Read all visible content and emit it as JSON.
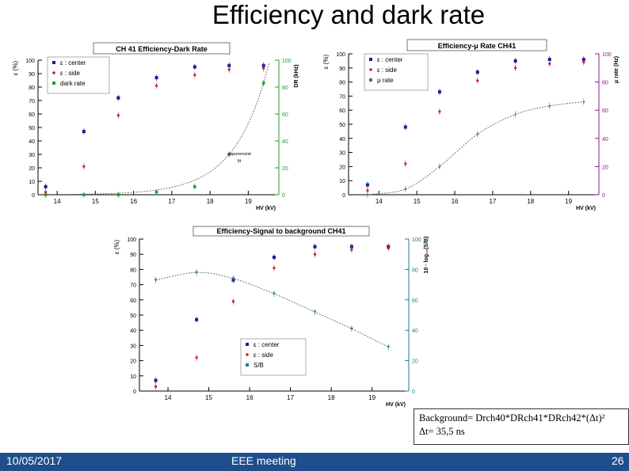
{
  "slide": {
    "title": "Efficiency and dark rate",
    "footer": {
      "date": "10/05/2017",
      "event": "EEE meeting",
      "page": "26"
    },
    "background_box": {
      "line1": "Background= Drch40*DRch41*DRch42*(Δt)²",
      "line2": "Δt= 35,5 ns"
    }
  },
  "colors": {
    "center": "#1a1aa0",
    "side": "#d01c1c",
    "green": "#1f9e32",
    "purple": "#8a1a8a",
    "teal": "#1a7f8f",
    "fit": "#666666",
    "footer": "#1f4e8c"
  },
  "chart_data": [
    {
      "type": "scatter",
      "title": "CH 41  Efficiency-Dark Rate",
      "xlabel": "HV (kV)",
      "ylabel": "ε (%)",
      "y2label": "DR (kHz)",
      "xlim": [
        13.5,
        19.8
      ],
      "ylim": [
        0,
        100
      ],
      "y2lim": [
        0,
        100
      ],
      "xticks": [
        "14",
        "15",
        "16",
        "17",
        "18",
        "19"
      ],
      "yticks": [
        "0",
        "10",
        "20",
        "30",
        "40",
        "50",
        "60",
        "70",
        "80",
        "90",
        "100"
      ],
      "y2ticks": [
        "0",
        "20",
        "40",
        "60",
        "80",
        "100"
      ],
      "legend": [
        "ε : center",
        "ε : side",
        "dark rate"
      ],
      "annotation": [
        "esponenzial",
        "fit"
      ],
      "series": [
        {
          "name": "ε : center",
          "x": [
            13.7,
            14.7,
            15.6,
            16.6,
            17.6,
            18.5,
            19.4
          ],
          "y": [
            6,
            47,
            72,
            87,
            95,
            96,
            96
          ]
        },
        {
          "name": "ε : side",
          "x": [
            13.7,
            14.7,
            15.6,
            16.6,
            17.6,
            18.5,
            19.4
          ],
          "y": [
            2,
            21,
            59,
            81,
            89,
            93,
            94
          ]
        },
        {
          "name": "dark rate",
          "axis": "right",
          "x": [
            13.7,
            14.7,
            15.6,
            16.6,
            17.6,
            18.5,
            19.4
          ],
          "y": [
            0,
            0,
            0,
            2,
            6,
            30,
            83
          ]
        }
      ]
    },
    {
      "type": "scatter",
      "title": "Efficiency-μ Rate CH41",
      "xlabel": "HV (kV)",
      "ylabel": "ε (%)",
      "y2label": "μ rate (Hz)",
      "xlim": [
        13.2,
        19.8
      ],
      "ylim": [
        0,
        100
      ],
      "y2lim": [
        0,
        100
      ],
      "xticks": [
        "14",
        "15",
        "16",
        "17",
        "18",
        "19"
      ],
      "yticks": [
        "0",
        "10",
        "20",
        "30",
        "40",
        "50",
        "60",
        "70",
        "80",
        "90",
        "100"
      ],
      "y2ticks": [
        "0",
        "20",
        "40",
        "60",
        "80",
        "100"
      ],
      "legend": [
        "ε : center",
        "ε : side",
        "μ rate"
      ],
      "series": [
        {
          "name": "ε : center",
          "x": [
            13.7,
            14.7,
            15.6,
            16.6,
            17.6,
            18.5,
            19.4
          ],
          "y": [
            7,
            48,
            73,
            87,
            95,
            96,
            96
          ]
        },
        {
          "name": "ε : side",
          "x": [
            13.7,
            14.7,
            15.6,
            16.6,
            17.6,
            18.5,
            19.4
          ],
          "y": [
            3,
            22,
            59,
            81,
            90,
            93,
            94
          ]
        },
        {
          "name": "μ rate",
          "axis": "right",
          "x": [
            13.7,
            14.7,
            15.6,
            16.6,
            17.6,
            18.5,
            19.4
          ],
          "y": [
            0,
            4,
            20,
            43,
            57,
            63,
            66
          ]
        }
      ]
    },
    {
      "type": "scatter",
      "title": "Efficiency-Signal to background CH41",
      "xlabel": "HV (kV)",
      "ylabel": "ε (%)",
      "y2label": "10 · log₁₀(S/B)",
      "xlim": [
        13.3,
        19.9
      ],
      "ylim": [
        0,
        100
      ],
      "y2lim": [
        0,
        100
      ],
      "xticks": [
        "14",
        "15",
        "16",
        "17",
        "18",
        "19"
      ],
      "yticks": [
        "0",
        "10",
        "20",
        "30",
        "40",
        "50",
        "60",
        "70",
        "80",
        "90",
        "100"
      ],
      "y2ticks": [
        "0",
        "20",
        "40",
        "60",
        "80",
        "100"
      ],
      "legend": [
        "ε : center",
        "ε : side",
        "S/B"
      ],
      "series": [
        {
          "name": "ε : center",
          "x": [
            13.7,
            14.7,
            15.6,
            16.6,
            17.6,
            18.5,
            19.4
          ],
          "y": [
            7,
            47,
            73,
            88,
            95,
            95,
            95
          ]
        },
        {
          "name": "ε : side",
          "x": [
            13.7,
            14.7,
            15.6,
            16.6,
            17.6,
            18.5,
            19.4
          ],
          "y": [
            3,
            22,
            59,
            81,
            90,
            93,
            94
          ]
        },
        {
          "name": "S/B",
          "axis": "right",
          "x": [
            13.7,
            14.7,
            15.6,
            16.6,
            17.6,
            18.5,
            19.4
          ],
          "y": [
            73,
            78,
            74,
            64,
            52,
            41,
            29
          ]
        }
      ]
    }
  ]
}
